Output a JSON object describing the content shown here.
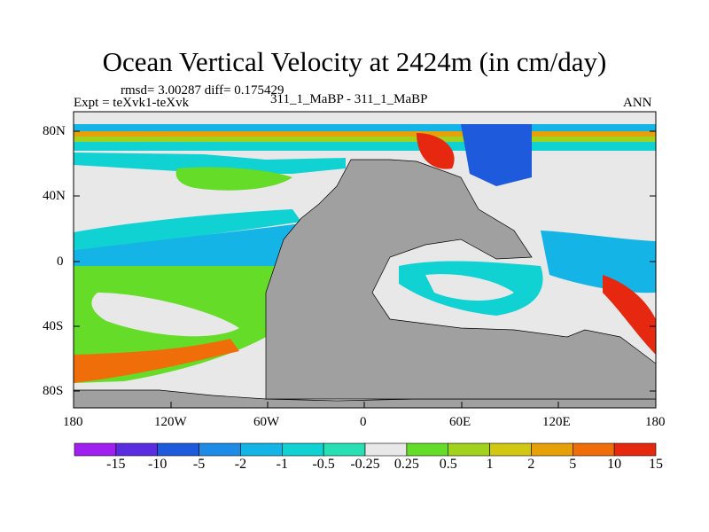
{
  "title": "Ocean Vertical Velocity at 2424m (in cm/day)",
  "stats": "rmsd= 3.00287 diff= 0.175429",
  "expt": "Expt = teXvk1-teXvk",
  "case_label": "311_1_MaBP - 311_1_MaBP",
  "season": "ANN",
  "lat_labels": [
    "80N",
    "40N",
    "0",
    "40S",
    "80S"
  ],
  "lon_labels": [
    "180",
    "120W",
    "60W",
    "0",
    "60E",
    "120E",
    "180"
  ],
  "colorbar": {
    "labels": [
      "-15",
      "-10",
      "-5",
      "-2",
      "-1",
      "-0.5",
      "-0.25",
      "0.25",
      "0.5",
      "1",
      "2",
      "5",
      "10",
      "15"
    ],
    "colors": [
      "#a020f0",
      "#5a2ee0",
      "#1e5adc",
      "#1e8ce6",
      "#14b4e6",
      "#10d2d2",
      "#28e0b4",
      "#e8e8e8",
      "#64dc28",
      "#a0d21e",
      "#d2c814",
      "#e6a00a",
      "#f06e0a",
      "#e62810"
    ]
  },
  "land_color": "#a0a0a0"
}
